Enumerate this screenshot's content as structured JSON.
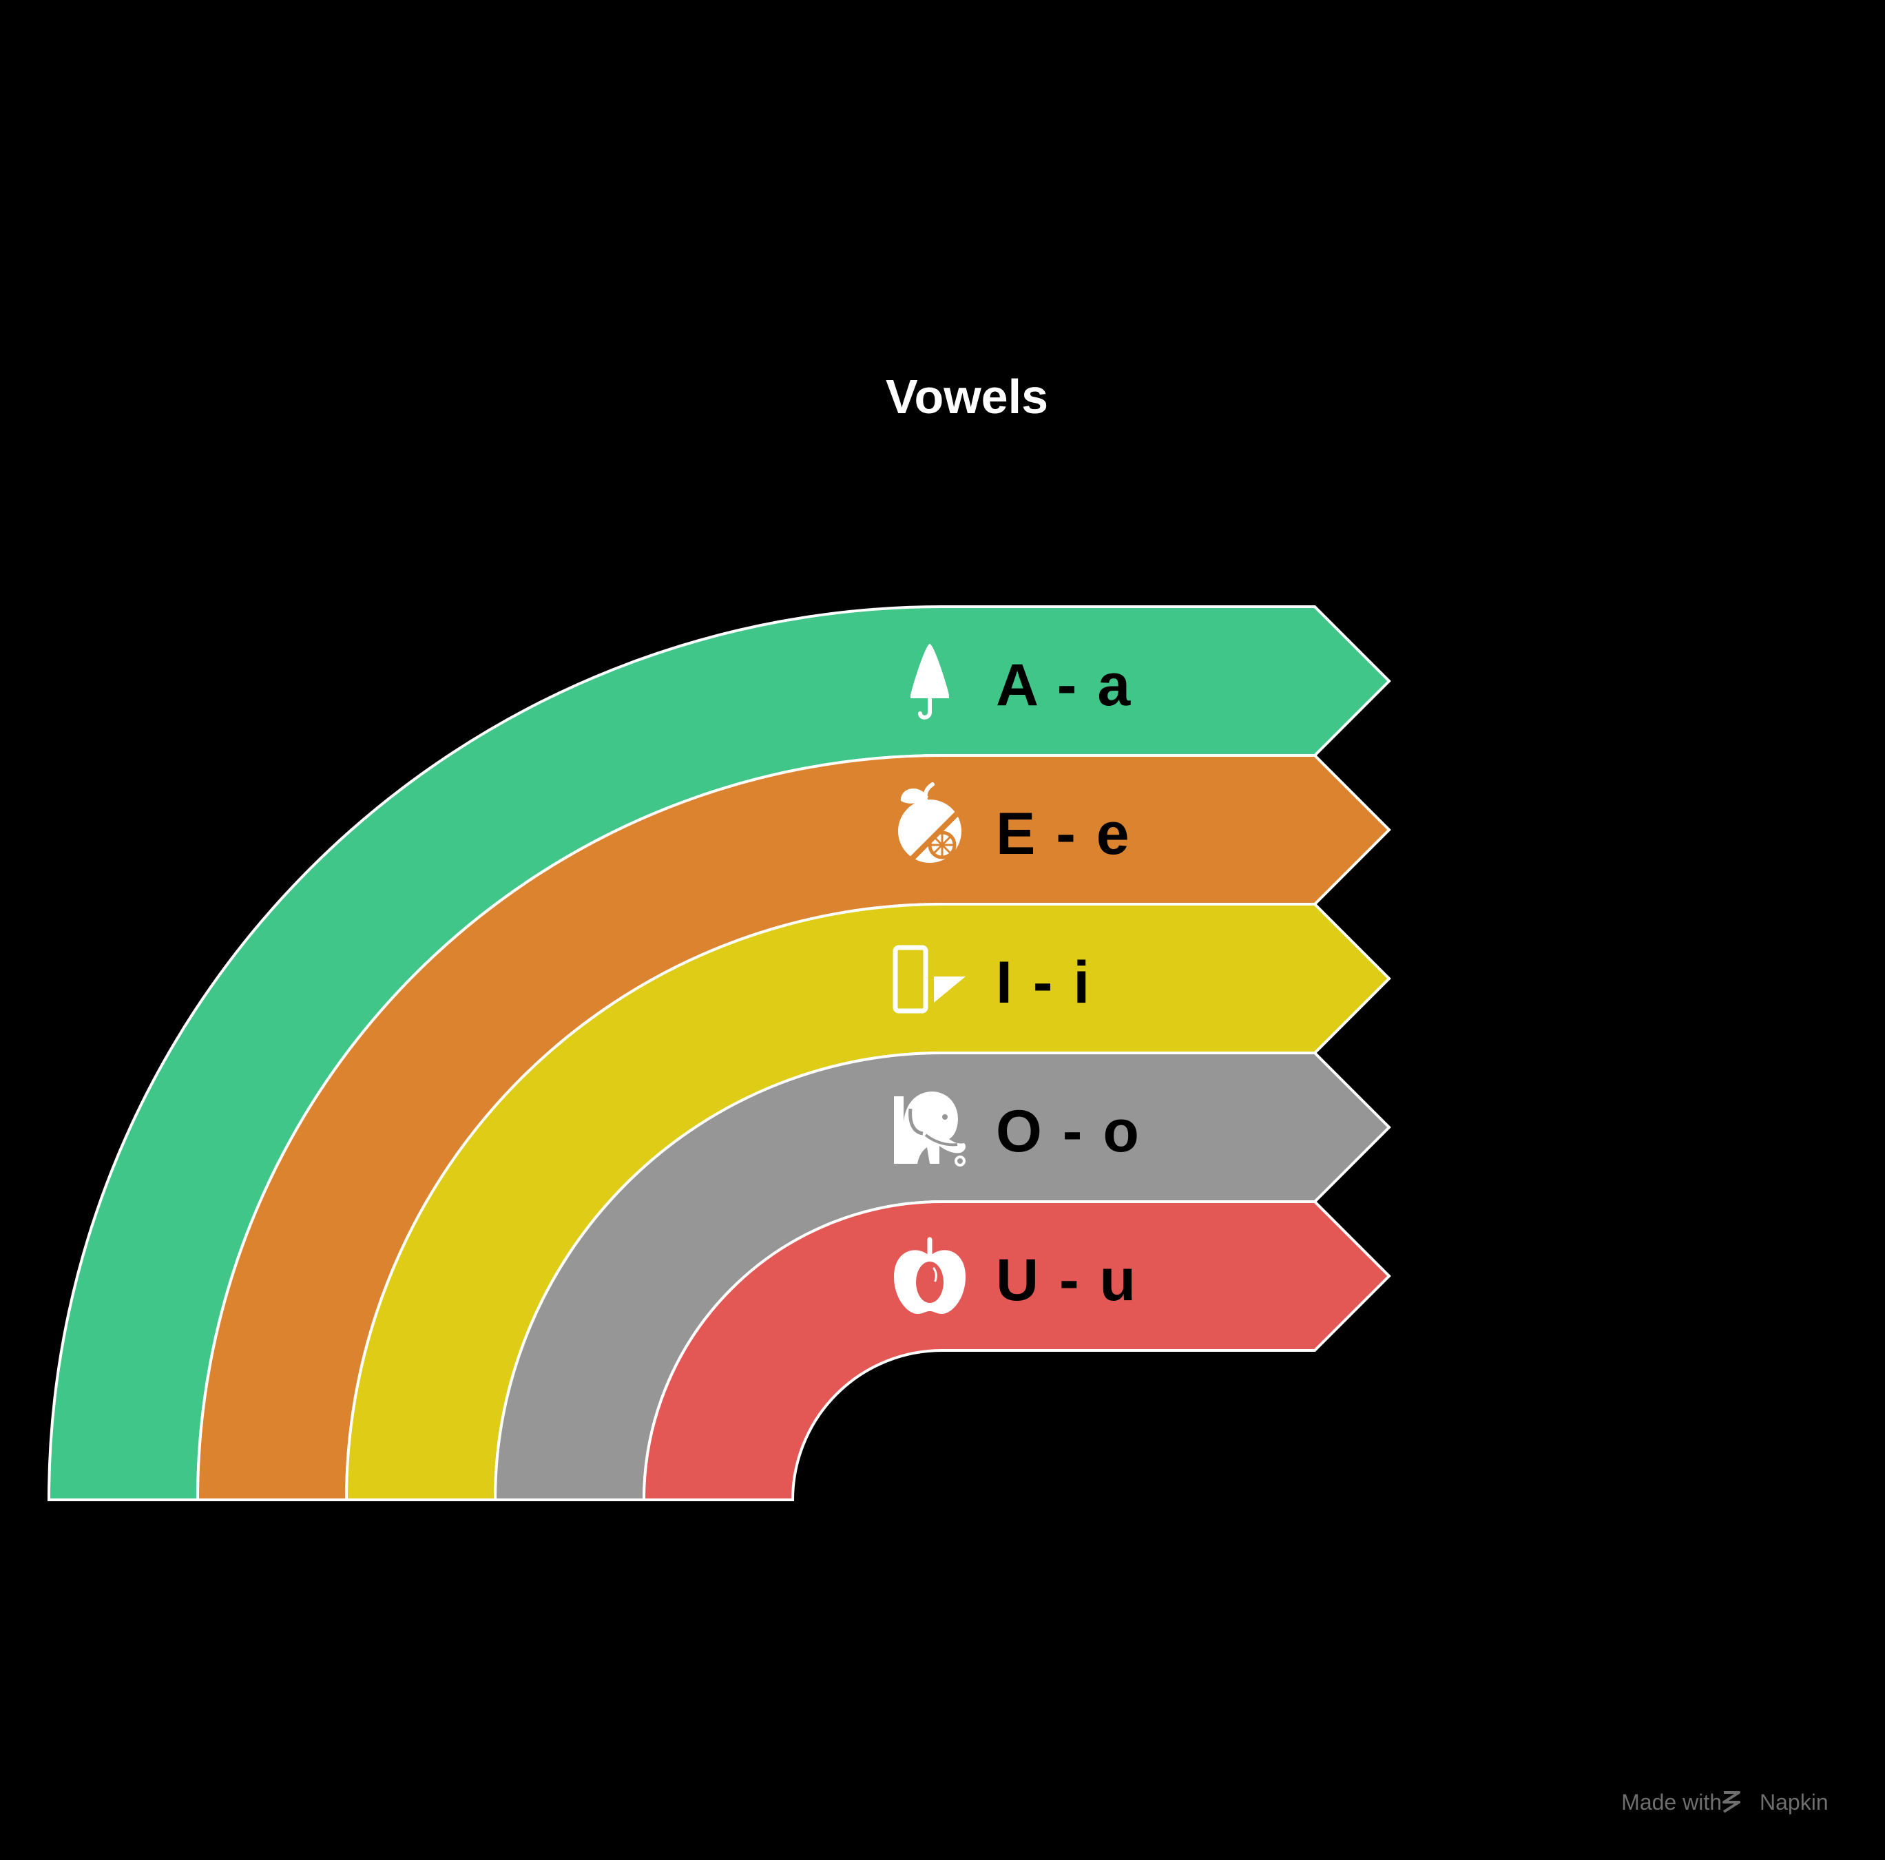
{
  "title": "Vowels",
  "credit": {
    "prefix": "Made with",
    "brand": "Napkin"
  },
  "items": [
    {
      "label": "A - a",
      "icon": "umbrella-icon",
      "color": "#40C688"
    },
    {
      "label": "E - e",
      "icon": "orange-icon",
      "color": "#DC8330"
    },
    {
      "label": "I - i",
      "icon": "door-icon",
      "color": "#DECC17"
    },
    {
      "label": "O - o",
      "icon": "elephant-icon",
      "color": "#969696"
    },
    {
      "label": "U - u",
      "icon": "apple-icon",
      "color": "#E35855"
    }
  ]
}
